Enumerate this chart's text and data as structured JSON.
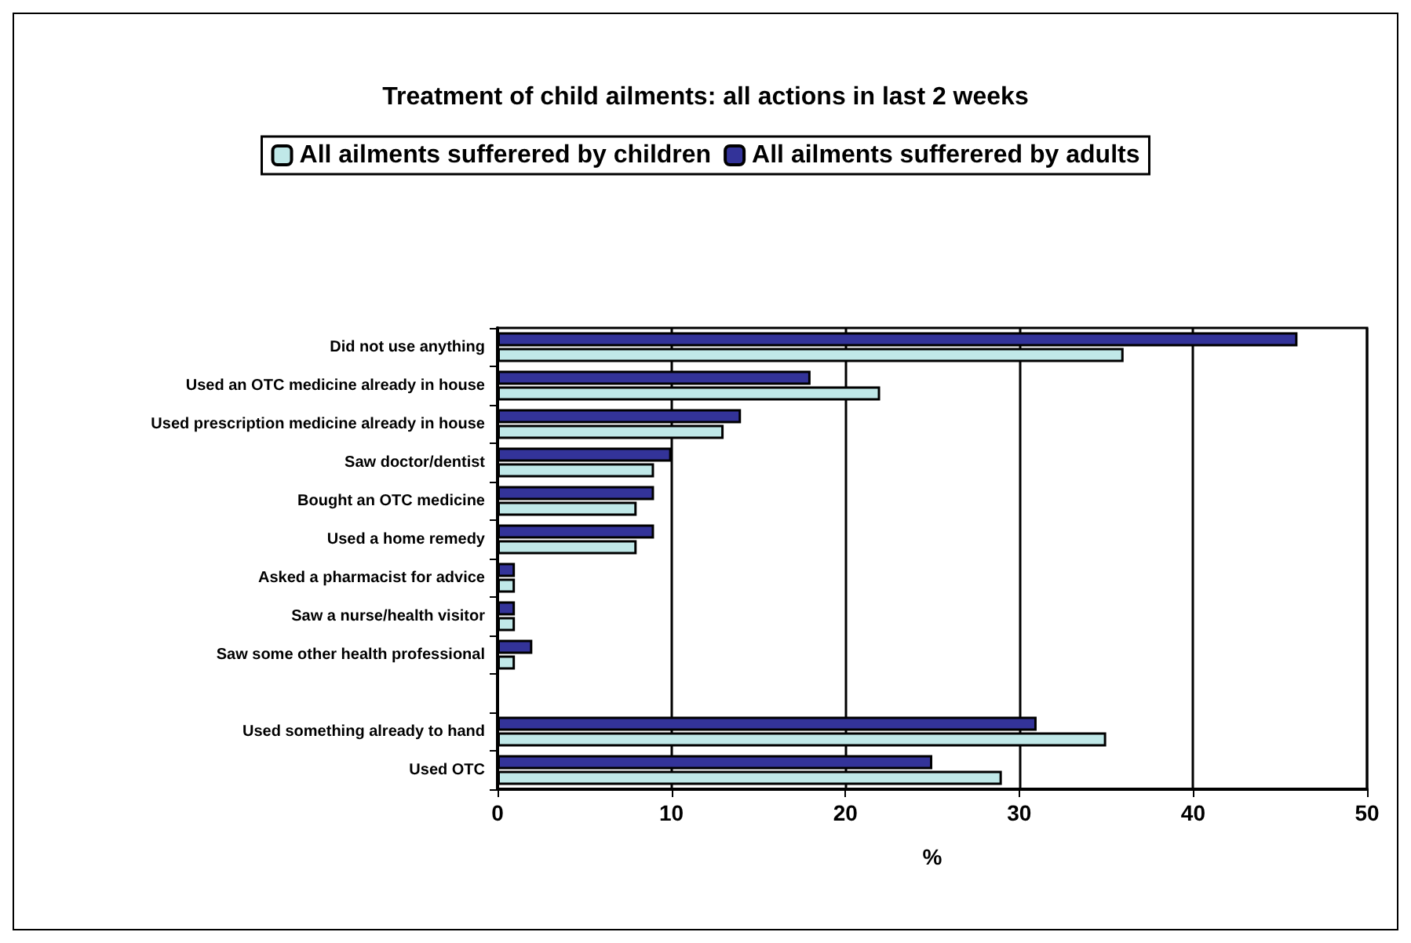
{
  "chart_data": {
    "type": "bar",
    "orientation": "horizontal",
    "title": "Treatment of child ailments: all actions in last 2 weeks",
    "xlabel": "%",
    "categories": [
      "Did not use anything",
      "Used an OTC medicine already in house",
      "Used prescription medicine already in house",
      "Saw doctor/dentist",
      "Bought an OTC medicine",
      "Used a home remedy",
      "Asked a pharmacist for advice",
      "Saw a nurse/health visitor",
      "Saw some other health professional",
      null,
      "Used something already to hand",
      "Used OTC"
    ],
    "series": [
      {
        "name": "All ailments sufferered by children",
        "color": "#c0e8e8",
        "values": [
          36,
          22,
          13,
          9,
          8,
          8,
          1,
          1,
          1,
          null,
          35,
          29
        ]
      },
      {
        "name": "All ailments sufferered by adults",
        "color": "#333399",
        "values": [
          46,
          18,
          14,
          10,
          9,
          9,
          1,
          1,
          2,
          null,
          31,
          25
        ]
      }
    ],
    "xlim": [
      0,
      50
    ],
    "xticks": [
      0,
      10,
      20,
      30,
      40,
      50
    ],
    "grid": "x",
    "legend": "top"
  }
}
